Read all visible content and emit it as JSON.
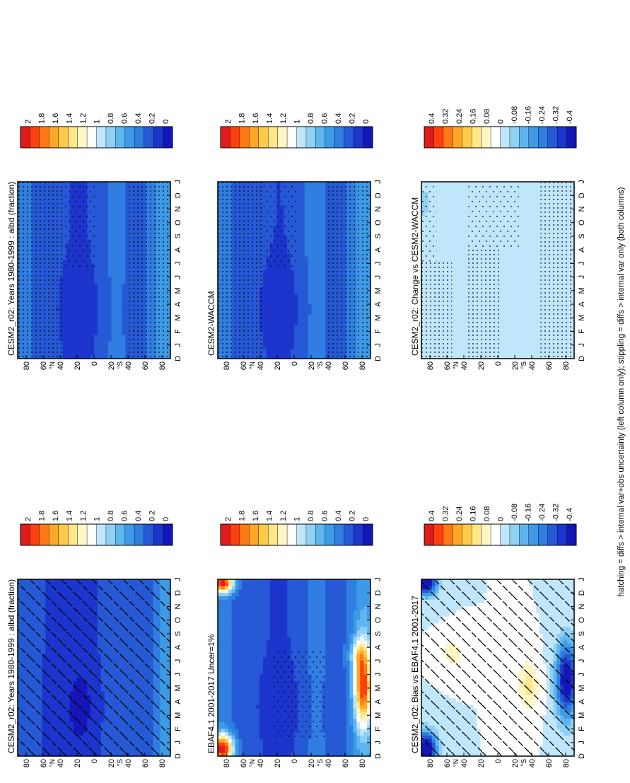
{
  "figure": {
    "orientation": "rotated 90 degrees counter-clockwise",
    "footnote": "hatching = diffs > internal var+obs uncertainty (left column only); stippling = diffs > internal var only (both columns)"
  },
  "months": [
    "D",
    "J",
    "F",
    "M",
    "A",
    "M",
    "J",
    "J",
    "A",
    "S",
    "O",
    "N",
    "D",
    "J"
  ],
  "lat_ticks": [
    "80",
    "60",
    "40",
    "20",
    "0",
    "20",
    "40",
    "60",
    "80"
  ],
  "lat_units": [
    "°N",
    "°S"
  ],
  "colorbars": {
    "absolute": {
      "labels": [
        "2",
        "1.8",
        "1.6",
        "1.4",
        "1.2",
        "1",
        "0.8",
        "0.6",
        "0.4",
        "0.2",
        "0"
      ],
      "colors": [
        "#de1c1c",
        "#ff4010",
        "#ff7a14",
        "#ffa726",
        "#ffc94a",
        "#ffe78a",
        "#fff6c6",
        "#ffffff",
        "#bfe6fb",
        "#8ed1f5",
        "#5fb6ef",
        "#3d9ae6",
        "#2f7ee0",
        "#2659d5",
        "#1c35cc",
        "#1416b8"
      ]
    },
    "difference": {
      "labels": [
        "0.4",
        "0.32",
        "0.24",
        "0.16",
        "0.08",
        "0",
        "-0.08",
        "-0.16",
        "-0.24",
        "-0.32",
        "-0.4"
      ],
      "colors": [
        "#de1c1c",
        "#ff4010",
        "#ff7a14",
        "#ffa726",
        "#ffc94a",
        "#ffe78a",
        "#fff6c6",
        "#ffffff",
        "#bfe6fb",
        "#8ed1f5",
        "#5fb6ef",
        "#3d9ae6",
        "#2f7ee0",
        "#2659d5",
        "#1c35cc",
        "#1416b8"
      ]
    }
  },
  "panels": [
    {
      "title": "CESM2_r02: Years 1980-1999 : albd (fraction)",
      "colorbar": "absolute",
      "field": "model_left",
      "overlay": "hatch"
    },
    {
      "title": "CESM2_r02: Years 1980-1999 : albd (fraction)",
      "colorbar": "absolute",
      "field": "model_right",
      "overlay": "stipple"
    },
    {
      "title": "EBAF4.1 2001-2017 Uncer=1%",
      "colorbar": "absolute",
      "field": "obs",
      "overlay": "stipple-light"
    },
    {
      "title": "CESM2-WACCM",
      "colorbar": "absolute",
      "field": "waccm",
      "overlay": "stipple"
    },
    {
      "title": "CESM2_r02: Bias vs EBAF4.1 2001-2017",
      "colorbar": "difference",
      "field": "bias",
      "overlay": "hatch"
    },
    {
      "title": "CESM2_r02: Change vs CESM2-WACCM",
      "colorbar": "difference",
      "field": "change",
      "overlay": "stipple-region"
    }
  ],
  "chart_data": [
    {
      "type": "heatmap",
      "title": "CESM2_r02: Years 1980-1999 : albd (fraction)",
      "x": "month (D to J)",
      "y": "latitude 90S to 90N",
      "note": "zonal mean albedo ~0.2-0.5; lowest ~0.15 near 10N-20N in Mar-May; ~0.6 near 70S-80S",
      "range": [
        0,
        2
      ]
    },
    {
      "type": "heatmap",
      "title": "CESM2-WACCM",
      "range": [
        0,
        2
      ],
      "note": "similar to CESM2_r02"
    },
    {
      "type": "heatmap",
      "title": "EBAF4.1 2001-2017 Uncer=1%",
      "range": [
        0,
        2
      ],
      "note": "values up to ~1.8-2.0 near 80N-90N in Dec-Feb and near 80S in Apr-Aug"
    },
    {
      "type": "heatmap",
      "title": "CESM2_r02: Bias vs EBAF4.1 2001-2017",
      "range": [
        -0.4,
        0.4
      ],
      "note": "mostly near 0; -0.4 near 80N-90N in Dec-Feb and 60S-80S in Apr-Aug; +0.08 bands near 40S-50S and 60N"
    },
    {
      "type": "heatmap",
      "title": "CESM2_r02: Change vs CESM2-WACCM",
      "range": [
        -0.4,
        0.4
      ],
      "note": "near zero everywhere; slight -0.08 near 80N-90N in Oct-Dec"
    }
  ]
}
